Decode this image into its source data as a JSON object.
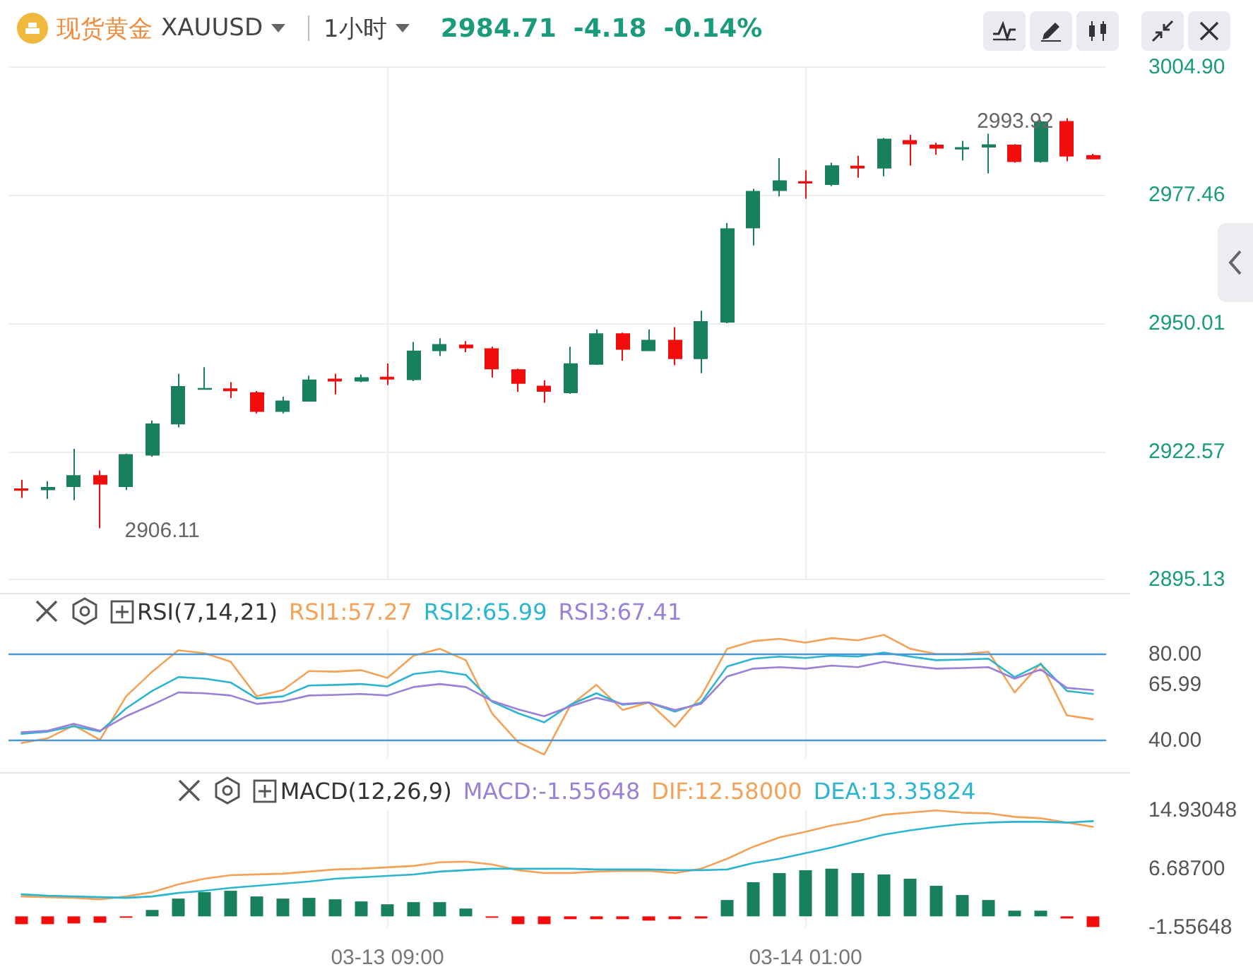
{
  "chart_data": [
    {
      "type": "candlestick",
      "title": "现货黄金",
      "subtitle": "XAUUSD",
      "annotations": [
        "1小时",
        "2984.71",
        "-4.18",
        "-0.14%",
        "2906.11",
        "2993.92"
      ],
      "categories": [
        null,
        null,
        null,
        null,
        null,
        null,
        null,
        null,
        null,
        null,
        null,
        null,
        null,
        null,
        null,
        null,
        null,
        null,
        null,
        null,
        null,
        null,
        null,
        null,
        null,
        null,
        null,
        null,
        null,
        null,
        null,
        null,
        null,
        null,
        null,
        null,
        null,
        null,
        null,
        null,
        null,
        null
      ],
      "ohlc": [
        [
          2914.5,
          2916.5,
          2912.6,
          2914.3
        ],
        [
          2914.4,
          2916.2,
          2912.4,
          2914.8
        ],
        [
          2915.1,
          2923.1,
          2912.1,
          2917.3
        ],
        [
          2917.3,
          2918.5,
          2906.11,
          2915.6
        ],
        [
          2915.1,
          2922.1,
          2914.3,
          2921.8
        ],
        [
          2921.8,
          2929.2,
          2921.4,
          2928.4
        ],
        [
          2928.5,
          2939.2,
          2927.7,
          2936.4
        ],
        [
          2935.9,
          2940.6,
          2935.8,
          2936.0
        ],
        [
          2935.9,
          2937.4,
          2934.0,
          2935.6
        ],
        [
          2935.1,
          2935.5,
          2930.7,
          2931.2
        ],
        [
          2931.2,
          2934.3,
          2930.7,
          2933.3
        ],
        [
          2933.4,
          2938.8,
          2933.4,
          2937.8
        ],
        [
          2938.0,
          2939.2,
          2934.8,
          2937.7
        ],
        [
          2937.7,
          2939.0,
          2937.4,
          2938.3
        ],
        [
          2938.4,
          2941.4,
          2936.8,
          2938.1
        ],
        [
          2938.0,
          2946.0,
          2937.6,
          2944.0
        ],
        [
          2944.2,
          2946.8,
          2943.0,
          2945.4
        ],
        [
          2945.3,
          2946.2,
          2943.8,
          2944.8
        ],
        [
          2944.5,
          2945.0,
          2938.4,
          2940.3
        ],
        [
          2940.0,
          2940.3,
          2935.3,
          2937.2
        ],
        [
          2936.5,
          2937.8,
          2933.0,
          2935.5
        ],
        [
          2935.2,
          2945.0,
          2934.9,
          2941.3
        ],
        [
          2941.3,
          2948.7,
          2941.1,
          2947.7
        ],
        [
          2947.7,
          2948.0,
          2942.0,
          2944.5
        ],
        [
          2944.2,
          2948.7,
          2944.2,
          2946.3
        ],
        [
          2946.3,
          2949.2,
          2941.0,
          2942.5
        ],
        [
          2942.5,
          2952.7,
          2939.3,
          2950.3
        ],
        [
          2950.3,
          2971.5,
          2950.0,
          2970.2
        ],
        [
          2970.5,
          2978.8,
          2966.7,
          2978.2
        ],
        [
          2978.5,
          2985.4,
          2977.2,
          2980.5
        ],
        [
          2980.3,
          2982.8,
          2976.7,
          2980.1
        ],
        [
          2979.8,
          2984.4,
          2979.4,
          2983.7
        ],
        [
          2983.6,
          2985.9,
          2981.2,
          2983.3
        ],
        [
          2983.3,
          2989.7,
          2981.5,
          2989.4
        ],
        [
          2989.1,
          2990.4,
          2983.8,
          2988.5
        ],
        [
          2988.1,
          2988.7,
          2986.1,
          2987.6
        ],
        [
          2987.4,
          2989.1,
          2984.9,
          2987.6
        ],
        [
          2987.8,
          2990.6,
          2982.1,
          2988.2
        ],
        [
          2988.1,
          2988.4,
          2984.4,
          2984.7
        ],
        [
          2984.7,
          2993.5,
          2984.4,
          2993.1
        ],
        [
          2993.2,
          2993.92,
          2984.7,
          2985.9
        ],
        [
          2985.9,
          2986.3,
          2985.2,
          2985.3
        ]
      ],
      "colors": [
        "#f20d0d",
        "#18805b",
        "#18805b",
        "#f20d0d",
        "#18805b",
        "#18805b",
        "#18805b",
        "#18805b",
        "#f20d0d",
        "#f20d0d",
        "#18805b",
        "#18805b",
        "#f20d0d",
        "#18805b",
        "#f20d0d",
        "#18805b",
        "#18805b",
        "#f20d0d",
        "#f20d0d",
        "#f20d0d",
        "#f20d0d",
        "#18805b",
        "#18805b",
        "#f20d0d",
        "#18805b",
        "#f20d0d",
        "#18805b",
        "#18805b",
        "#18805b",
        "#18805b",
        "#f20d0d",
        "#18805b",
        "#f20d0d",
        "#18805b",
        "#f20d0d",
        "#f20d0d",
        "#18805b",
        "#18805b",
        "#f20d0d",
        "#18805b",
        "#f20d0d",
        "#f20d0d"
      ],
      "ylim": [
        2895.13,
        3004.9
      ],
      "yticks": [
        {
          "value": 2895.13,
          "label": "2895.13"
        },
        {
          "value": 2922.57,
          "label": "2922.57"
        },
        {
          "value": 2950.01,
          "label": "2950.01"
        },
        {
          "value": 2977.46,
          "label": "2977.46"
        },
        {
          "value": 3004.9,
          "label": "3004.90"
        }
      ],
      "grid": true,
      "tick_labels": "y"
    },
    {
      "type": "line",
      "title": "RSI(7,14,21)",
      "categories": [
        null,
        null,
        null,
        null,
        null,
        null,
        null,
        null,
        null,
        null,
        null,
        null,
        null,
        null,
        null,
        null,
        null,
        null,
        null,
        null,
        null,
        null,
        null,
        null,
        null,
        null,
        null,
        null,
        null,
        null,
        null,
        null,
        null,
        null,
        null,
        null,
        null,
        null,
        null,
        null,
        null,
        null
      ],
      "series": [
        {
          "name": "RSI1:57.27",
          "color": "#f3a257",
          "values": [
            38.9,
            41.1,
            47.1,
            40.4,
            60.5,
            71.9,
            81.8,
            80.4,
            76.5,
            60.5,
            63.4,
            72.2,
            71.9,
            72.6,
            69.0,
            79.3,
            82.5,
            77.2,
            52.7,
            39.3,
            33.6,
            56.3,
            65.8,
            54.2,
            57.7,
            46.4,
            60.5,
            82.5,
            86.0,
            87.1,
            85.3,
            87.4,
            86.4,
            88.9,
            82.5,
            80.0,
            80.0,
            81.1,
            62.3,
            75.8,
            51.7,
            49.9
          ]
        },
        {
          "name": "RSI2:65.99",
          "color": "#2bb5d0",
          "values": [
            43.2,
            44.2,
            46.7,
            44.2,
            54.9,
            63.0,
            69.4,
            68.7,
            66.9,
            59.5,
            60.5,
            65.5,
            65.8,
            66.2,
            65.1,
            70.8,
            72.2,
            70.4,
            58.1,
            52.7,
            48.5,
            56.6,
            61.9,
            56.6,
            57.7,
            53.4,
            57.7,
            74.3,
            77.9,
            78.9,
            78.2,
            79.3,
            78.9,
            80.7,
            78.9,
            77.2,
            77.5,
            77.9,
            69.4,
            75.4,
            63.0,
            61.6
          ]
        },
        {
          "name": "RSI3:67.41",
          "color": "#9a80d6",
          "values": [
            43.9,
            44.6,
            47.8,
            44.6,
            51.3,
            56.6,
            62.3,
            61.9,
            60.9,
            57.0,
            58.1,
            60.9,
            61.2,
            61.6,
            60.9,
            64.8,
            66.2,
            64.8,
            58.4,
            54.5,
            51.3,
            55.9,
            59.8,
            57.0,
            57.7,
            54.2,
            57.0,
            69.7,
            73.3,
            74.0,
            73.3,
            74.7,
            74.0,
            76.5,
            74.7,
            73.3,
            73.6,
            74.0,
            68.7,
            72.9,
            64.4,
            63.4
          ]
        }
      ],
      "ylim": [
        32,
        92
      ],
      "yticks": [
        {
          "value": 40,
          "label": "40.00"
        },
        {
          "value": 65.99,
          "label": "65.99"
        },
        {
          "value": 80,
          "label": "80.00"
        }
      ],
      "ref_lines": [
        {
          "axis": "y",
          "value": 80,
          "color": "#4a98d3"
        },
        {
          "axis": "y",
          "value": 40,
          "color": "#4a98d3"
        }
      ],
      "grid": "x",
      "legend": "top left",
      "tick_labels": "y"
    },
    {
      "type": "bar",
      "title": "MACD(12,26,9)",
      "annotations": [
        "MACD:-1.55648"
      ],
      "categories": [
        null,
        null,
        null,
        null,
        null,
        null,
        null,
        null,
        null,
        null,
        null,
        null,
        null,
        null,
        "03-13 09:00",
        null,
        null,
        null,
        null,
        null,
        null,
        null,
        null,
        null,
        null,
        null,
        null,
        null,
        null,
        null,
        "03-14 01:00",
        null,
        null,
        null,
        null,
        null,
        null,
        null,
        null,
        null,
        null,
        null
      ],
      "series": [
        {
          "colors": [
            "#f20d0d",
            "#f20d0d",
            "#f20d0d",
            "#f20d0d",
            "#f20d0d",
            "#18805b",
            "#18805b",
            "#18805b",
            "#18805b",
            "#18805b",
            "#18805b",
            "#18805b",
            "#18805b",
            "#18805b",
            "#18805b",
            "#18805b",
            "#18805b",
            "#18805b",
            "#f20d0d",
            "#f20d0d",
            "#f20d0d",
            "#f20d0d",
            "#f20d0d",
            "#f20d0d",
            "#f20d0d",
            "#f20d0d",
            "#f20d0d",
            "#18805b",
            "#18805b",
            "#18805b",
            "#18805b",
            "#18805b",
            "#18805b",
            "#18805b",
            "#18805b",
            "#18805b",
            "#18805b",
            "#18805b",
            "#18805b",
            "#18805b",
            "#f20d0d",
            "#f20d0d"
          ],
          "values": [
            -1.1,
            -1.1,
            -1.0,
            -0.9,
            -0.2,
            0.9,
            2.5,
            3.4,
            3.6,
            2.8,
            2.5,
            2.6,
            2.4,
            2.1,
            1.7,
            2.0,
            2.0,
            1.1,
            -0.2,
            -1.1,
            -1.1,
            -0.4,
            -0.4,
            -0.4,
            -0.6,
            -0.4,
            -0.3,
            2.3,
            4.8,
            6.1,
            6.5,
            6.7,
            6.1,
            5.9,
            5.3,
            4.3,
            3.0,
            2.3,
            0.8,
            0.8,
            -0.3,
            -1.5
          ]
        },
        {
          "type": "line",
          "name": "DIF:12.58000",
          "color": "#f3a257",
          "values": [
            2.8,
            2.7,
            2.6,
            2.4,
            2.8,
            3.4,
            4.5,
            5.3,
            5.8,
            5.9,
            6.0,
            6.3,
            6.6,
            6.7,
            6.9,
            7.1,
            7.6,
            7.7,
            7.3,
            6.5,
            6.1,
            6.1,
            6.3,
            6.4,
            6.4,
            6.1,
            6.7,
            8.1,
            9.8,
            11.1,
            11.9,
            12.8,
            13.4,
            14.3,
            14.6,
            14.9,
            14.6,
            14.5,
            14.0,
            13.8,
            13.2,
            12.6
          ]
        },
        {
          "type": "line",
          "name": "DEA:13.35824",
          "color": "#2bb5d0",
          "values": [
            3.1,
            2.9,
            2.8,
            2.7,
            2.6,
            2.8,
            3.3,
            3.6,
            4.0,
            4.3,
            4.6,
            4.9,
            5.3,
            5.5,
            5.7,
            5.9,
            6.3,
            6.5,
            6.7,
            6.7,
            6.7,
            6.7,
            6.6,
            6.6,
            6.6,
            6.5,
            6.5,
            6.6,
            7.5,
            8.1,
            8.9,
            9.7,
            10.6,
            11.5,
            12.1,
            12.6,
            13.0,
            13.2,
            13.3,
            13.3,
            13.2,
            13.4
          ]
        }
      ],
      "ylim": [
        -1.55648,
        14.93048
      ],
      "yticks": [
        {
          "value": -1.55648,
          "label": "-1.55648"
        },
        {
          "value": 6.687,
          "label": "6.68700"
        },
        {
          "value": 14.93048,
          "label": "14.93048"
        }
      ],
      "grid": "x",
      "legend": "top"
    }
  ]
}
